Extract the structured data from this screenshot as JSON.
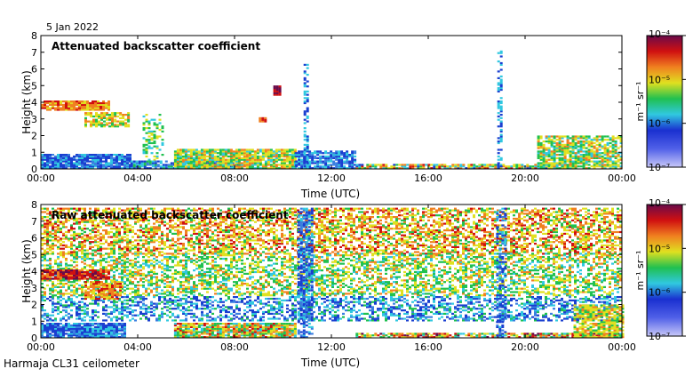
{
  "date": "5 Jan 2022",
  "footer": "Harmaja CL31 ceilometer",
  "colors": {
    "scale": [
      "#c8c8f8",
      "#3a7fe0",
      "#1a3fd0",
      "#30c8e0",
      "#20c050",
      "#e0e020",
      "#f08020",
      "#d01010",
      "#6a0a4a"
    ]
  },
  "chart_data": [
    {
      "type": "heatmap",
      "title": "Attenuated backscatter coefficient",
      "xlabel": "Time (UTC)",
      "ylabel": "Height (km)",
      "x_ticks": [
        "00:00",
        "04:00",
        "08:00",
        "12:00",
        "16:00",
        "20:00",
        "00:00"
      ],
      "y_ticks": [
        "0",
        "1",
        "2",
        "3",
        "4",
        "5",
        "6",
        "7",
        "8"
      ],
      "ylim": [
        0,
        8
      ],
      "xlim_hours": [
        0,
        24
      ]
    },
    {
      "type": "heatmap",
      "title": "Raw attenuated backscatter coefficient",
      "xlabel": "Time (UTC)",
      "ylabel": "Height (km)",
      "x_ticks": [
        "00:00",
        "04:00",
        "08:00",
        "12:00",
        "16:00",
        "20:00",
        "00:00"
      ],
      "y_ticks": [
        "0",
        "1",
        "2",
        "3",
        "4",
        "5",
        "6",
        "7",
        "8"
      ],
      "ylim": [
        0,
        8
      ],
      "xlim_hours": [
        0,
        24
      ]
    }
  ],
  "colorbar": {
    "units": "m⁻¹ sr⁻¹",
    "ticks": [
      "10⁻⁴",
      "10⁻⁵",
      "10⁻⁶",
      "10⁻⁷"
    ]
  }
}
